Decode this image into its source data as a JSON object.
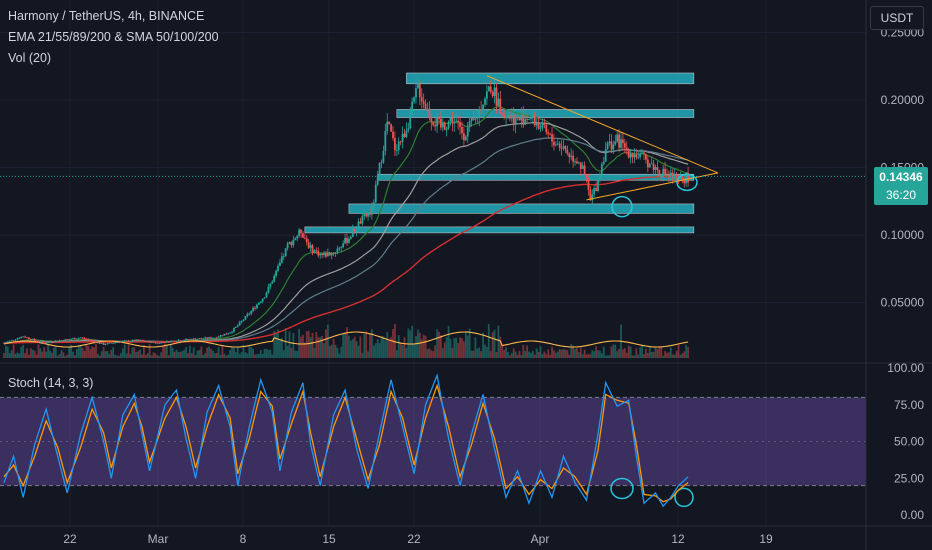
{
  "header": {
    "symbol_title": "Harmony / TetherUS, 4h, BINANCE",
    "indicator_ma": "EMA 21/55/89/200 & SMA 50/100/200",
    "indicator_vol": "Vol (20)",
    "currency_button": "USDT"
  },
  "oscillator": {
    "title": "Stoch (14, 3, 3)",
    "upper_band": 80,
    "lower_band": 20
  },
  "price_panel": {
    "current_price": "0.14346",
    "countdown": "36:20",
    "price_badge_color": "#26a69a",
    "up_color": "#26a69a",
    "down_color": "#ef5350"
  },
  "chart_data": {
    "type": "candlestick",
    "ylim": [
      0.0,
      0.25
    ],
    "y_ticks": [
      "0.25000",
      "0.20000",
      "0.15000",
      "0.10000",
      "0.05000"
    ],
    "y_tick_values": [
      0.25,
      0.2,
      0.15,
      0.1,
      0.05
    ],
    "x_ticks": [
      "22",
      "Mar",
      "8",
      "15",
      "22",
      "Apr",
      "12",
      "19"
    ],
    "osc_ylim": [
      0,
      100
    ],
    "osc_ticks": [
      "100.00",
      "75.00",
      "50.00",
      "25.00",
      "0.00"
    ],
    "osc_tick_values": [
      100,
      75,
      50,
      25,
      0
    ],
    "price_path": [
      [
        0,
        0.02
      ],
      [
        10,
        0.025
      ],
      [
        20,
        0.02
      ],
      [
        30,
        0.022
      ],
      [
        40,
        0.024
      ],
      [
        52,
        0.019
      ],
      [
        60,
        0.021
      ],
      [
        70,
        0.022
      ],
      [
        80,
        0.02
      ],
      [
        90,
        0.022
      ],
      [
        100,
        0.023
      ],
      [
        110,
        0.024
      ],
      [
        118,
        0.028
      ],
      [
        122,
        0.033
      ],
      [
        128,
        0.042
      ],
      [
        136,
        0.055
      ],
      [
        142,
        0.072
      ],
      [
        148,
        0.092
      ],
      [
        155,
        0.103
      ],
      [
        160,
        0.09
      ],
      [
        166,
        0.085
      ],
      [
        172,
        0.087
      ],
      [
        180,
        0.098
      ],
      [
        186,
        0.11
      ],
      [
        192,
        0.118
      ],
      [
        196,
        0.15
      ],
      [
        200,
        0.183
      ],
      [
        204,
        0.165
      ],
      [
        208,
        0.172
      ],
      [
        212,
        0.188
      ],
      [
        216,
        0.21
      ],
      [
        220,
        0.195
      ],
      [
        224,
        0.185
      ],
      [
        228,
        0.18
      ],
      [
        234,
        0.186
      ],
      [
        240,
        0.175
      ],
      [
        246,
        0.185
      ],
      [
        250,
        0.2
      ],
      [
        254,
        0.21
      ],
      [
        258,
        0.198
      ],
      [
        262,
        0.19
      ],
      [
        268,
        0.185
      ],
      [
        274,
        0.188
      ],
      [
        280,
        0.18
      ],
      [
        286,
        0.17
      ],
      [
        292,
        0.165
      ],
      [
        296,
        0.158
      ],
      [
        300,
        0.155
      ],
      [
        304,
        0.14
      ],
      [
        306,
        0.125
      ],
      [
        310,
        0.14
      ],
      [
        314,
        0.165
      ],
      [
        320,
        0.17
      ],
      [
        326,
        0.162
      ],
      [
        332,
        0.158
      ],
      [
        338,
        0.152
      ],
      [
        342,
        0.147
      ],
      [
        348,
        0.144
      ],
      [
        352,
        0.14
      ],
      [
        357,
        0.143
      ]
    ],
    "stoch_k": [
      [
        0,
        22
      ],
      [
        5,
        40
      ],
      [
        10,
        12
      ],
      [
        16,
        48
      ],
      [
        22,
        72
      ],
      [
        28,
        40
      ],
      [
        33,
        15
      ],
      [
        40,
        55
      ],
      [
        46,
        80
      ],
      [
        52,
        50
      ],
      [
        56,
        25
      ],
      [
        62,
        68
      ],
      [
        68,
        82
      ],
      [
        72,
        55
      ],
      [
        76,
        30
      ],
      [
        84,
        75
      ],
      [
        90,
        85
      ],
      [
        95,
        52
      ],
      [
        100,
        25
      ],
      [
        106,
        70
      ],
      [
        112,
        88
      ],
      [
        118,
        60
      ],
      [
        122,
        20
      ],
      [
        128,
        60
      ],
      [
        134,
        92
      ],
      [
        140,
        70
      ],
      [
        144,
        30
      ],
      [
        150,
        70
      ],
      [
        156,
        90
      ],
      [
        160,
        48
      ],
      [
        165,
        20
      ],
      [
        172,
        68
      ],
      [
        178,
        85
      ],
      [
        184,
        45
      ],
      [
        190,
        18
      ],
      [
        196,
        56
      ],
      [
        202,
        92
      ],
      [
        208,
        60
      ],
      [
        214,
        28
      ],
      [
        220,
        75
      ],
      [
        226,
        95
      ],
      [
        232,
        52
      ],
      [
        238,
        20
      ],
      [
        244,
        55
      ],
      [
        250,
        82
      ],
      [
        256,
        45
      ],
      [
        262,
        12
      ],
      [
        268,
        30
      ],
      [
        274,
        8
      ],
      [
        280,
        30
      ],
      [
        286,
        12
      ],
      [
        292,
        40
      ],
      [
        298,
        22
      ],
      [
        304,
        10
      ],
      [
        310,
        55
      ],
      [
        314,
        90
      ],
      [
        320,
        74
      ],
      [
        326,
        78
      ],
      [
        330,
        40
      ],
      [
        334,
        8
      ],
      [
        340,
        15
      ],
      [
        344,
        6
      ],
      [
        348,
        12
      ],
      [
        352,
        20
      ],
      [
        357,
        26
      ]
    ],
    "stoch_d": [
      [
        0,
        26
      ],
      [
        5,
        34
      ],
      [
        10,
        20
      ],
      [
        16,
        40
      ],
      [
        22,
        64
      ],
      [
        28,
        46
      ],
      [
        33,
        22
      ],
      [
        40,
        46
      ],
      [
        46,
        72
      ],
      [
        52,
        56
      ],
      [
        56,
        32
      ],
      [
        62,
        60
      ],
      [
        68,
        76
      ],
      [
        72,
        60
      ],
      [
        76,
        36
      ],
      [
        84,
        66
      ],
      [
        90,
        80
      ],
      [
        95,
        60
      ],
      [
        100,
        32
      ],
      [
        106,
        60
      ],
      [
        112,
        82
      ],
      [
        118,
        66
      ],
      [
        122,
        28
      ],
      [
        128,
        52
      ],
      [
        134,
        84
      ],
      [
        140,
        74
      ],
      [
        144,
        38
      ],
      [
        150,
        62
      ],
      [
        156,
        84
      ],
      [
        160,
        56
      ],
      [
        165,
        26
      ],
      [
        172,
        60
      ],
      [
        178,
        80
      ],
      [
        184,
        52
      ],
      [
        190,
        24
      ],
      [
        196,
        48
      ],
      [
        202,
        84
      ],
      [
        208,
        66
      ],
      [
        214,
        34
      ],
      [
        220,
        66
      ],
      [
        226,
        88
      ],
      [
        232,
        60
      ],
      [
        238,
        26
      ],
      [
        244,
        48
      ],
      [
        250,
        76
      ],
      [
        256,
        52
      ],
      [
        262,
        18
      ],
      [
        268,
        26
      ],
      [
        274,
        14
      ],
      [
        280,
        24
      ],
      [
        286,
        18
      ],
      [
        292,
        32
      ],
      [
        298,
        26
      ],
      [
        304,
        14
      ],
      [
        310,
        44
      ],
      [
        314,
        82
      ],
      [
        320,
        78
      ],
      [
        326,
        76
      ],
      [
        330,
        48
      ],
      [
        334,
        14
      ],
      [
        340,
        13
      ],
      [
        344,
        9
      ],
      [
        348,
        11
      ],
      [
        352,
        17
      ],
      [
        357,
        22
      ]
    ],
    "resistance_zones": [
      {
        "low": 0.212,
        "high": 0.22,
        "from": 210,
        "to": 360
      },
      {
        "low": 0.187,
        "high": 0.193,
        "from": 205,
        "to": 360
      },
      {
        "low": 0.142,
        "high": 0.145,
        "from": 195,
        "to": 360
      },
      {
        "low": 0.116,
        "high": 0.123,
        "from": 180,
        "to": 360
      },
      {
        "low": 0.102,
        "high": 0.106,
        "from": 157,
        "to": 360
      }
    ]
  }
}
